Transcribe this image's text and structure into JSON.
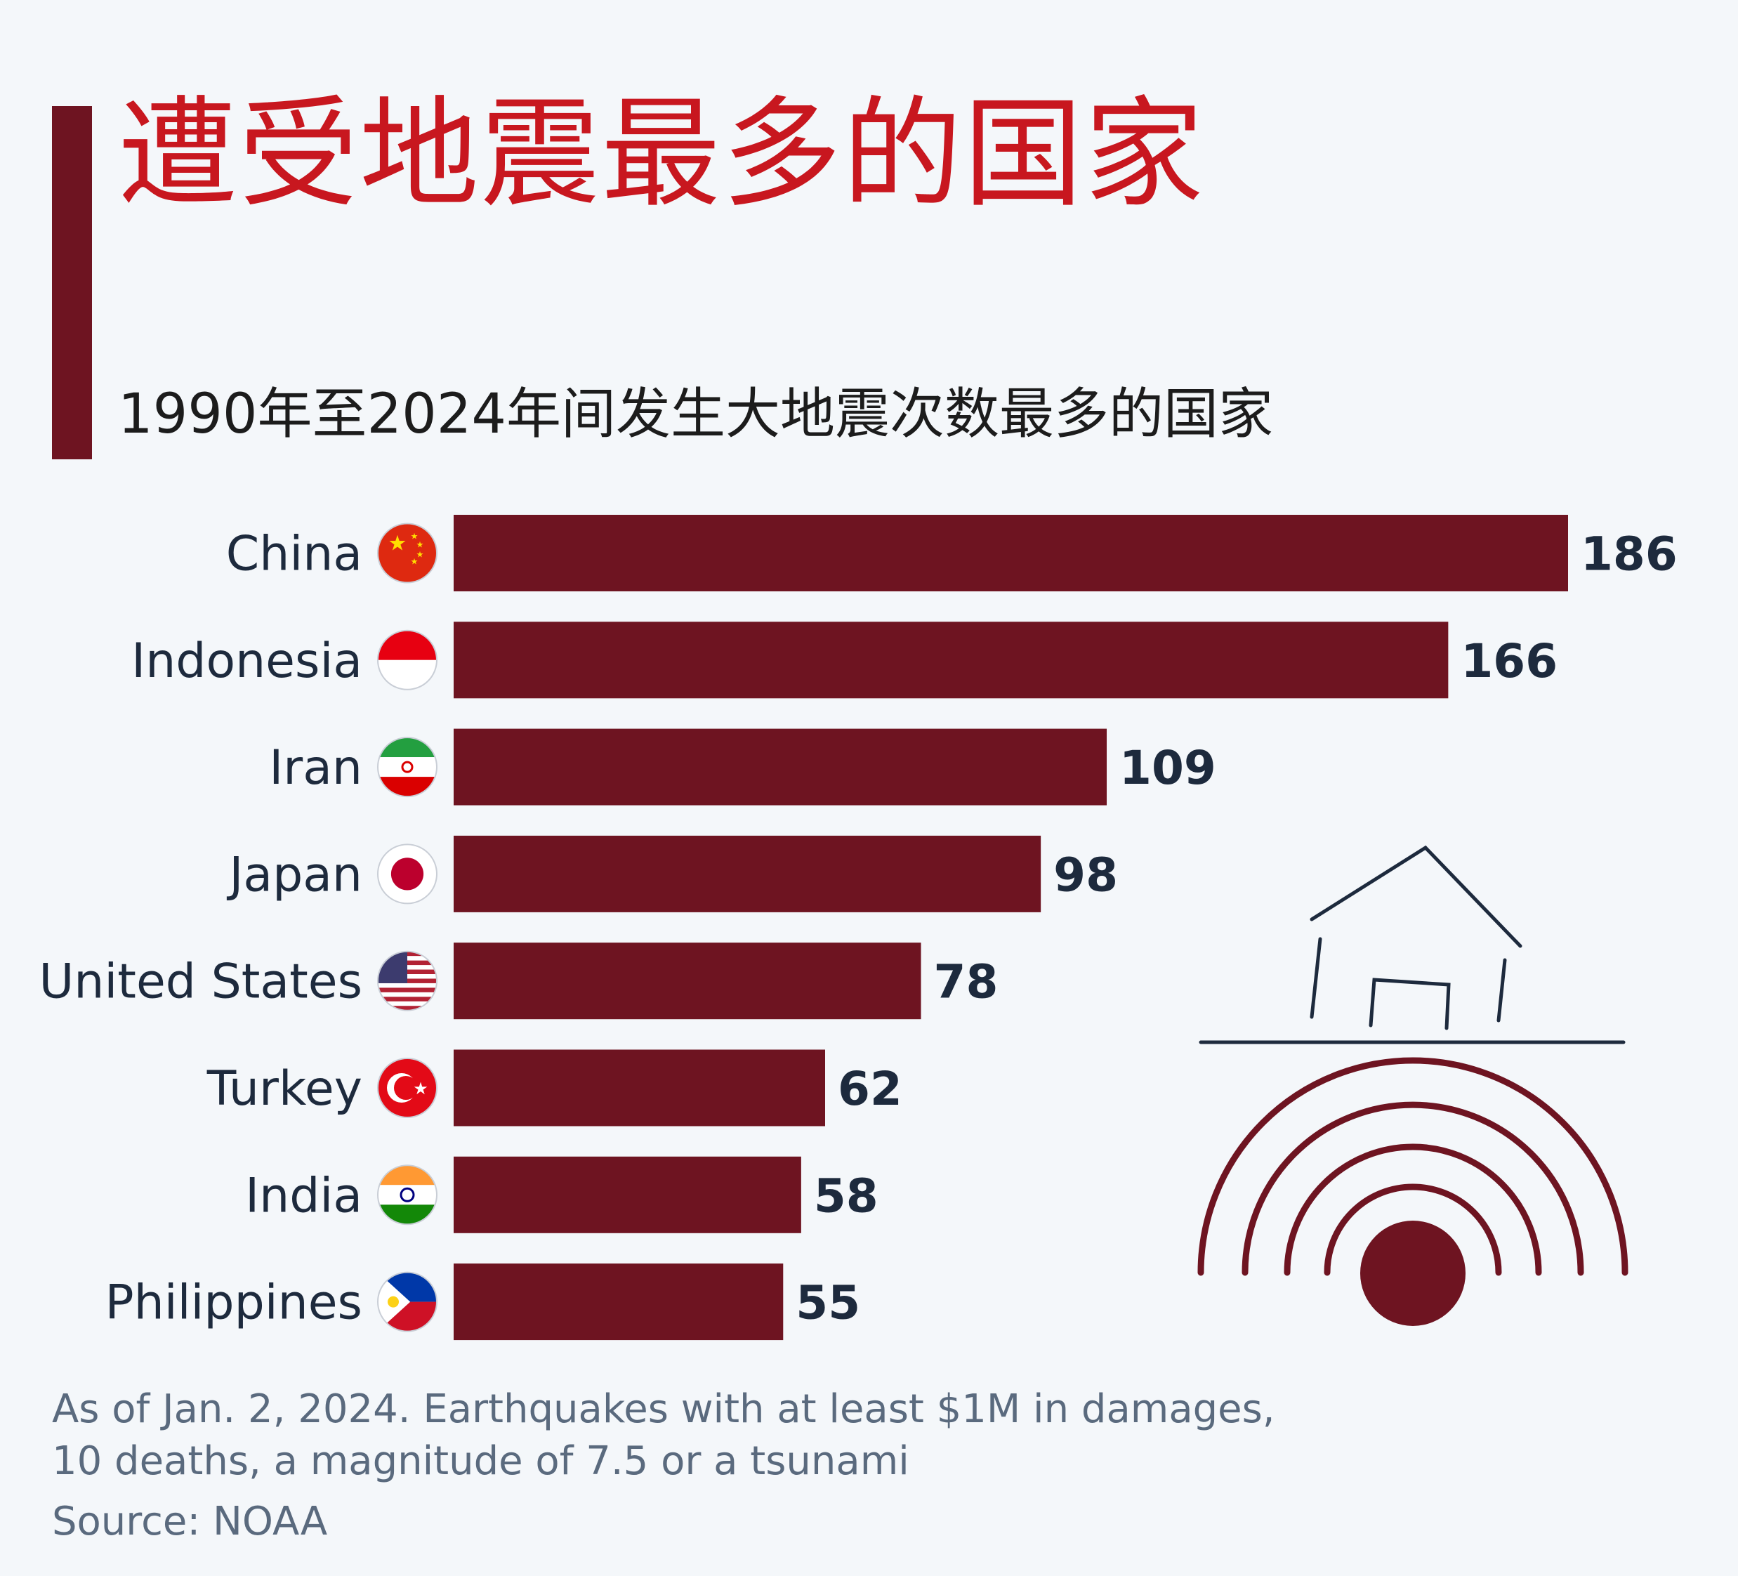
{
  "header": {
    "title": "遭受地震最多的国家",
    "subtitle": "1990年至2024年间发生大地震次数最多的国家"
  },
  "chart_data": {
    "type": "bar",
    "orientation": "horizontal",
    "categories": [
      "China",
      "Indonesia",
      "Iran",
      "Japan",
      "United States",
      "Turkey",
      "India",
      "Philippines"
    ],
    "values": [
      186,
      166,
      109,
      98,
      78,
      62,
      58,
      55
    ],
    "flags": [
      "china-flag-icon",
      "indonesia-flag-icon",
      "iran-flag-icon",
      "japan-flag-icon",
      "united-states-flag-icon",
      "turkey-flag-icon",
      "india-flag-icon",
      "philippines-flag-icon"
    ],
    "bar_color": "#6e1421",
    "xlim": [
      0,
      186
    ],
    "grid": false,
    "legend": "none"
  },
  "footer": {
    "note_line1": "As of Jan. 2, 2024. Earthquakes with at least $1M in damages,",
    "note_line2": "10 deaths, a magnitude of 7.5 or a tsunami",
    "source": "Source: NOAA"
  },
  "illustration": {
    "icon": "earthquake-house-icon",
    "color_house": "#1d2a3d",
    "color_waves": "#6e1421"
  }
}
